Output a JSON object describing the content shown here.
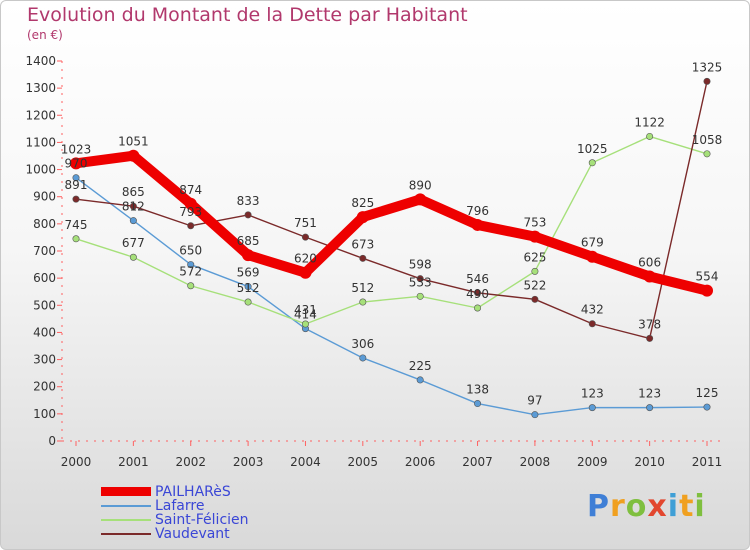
{
  "chart_data": {
    "type": "line",
    "title": "Evolution du Montant de la Dette par Habitant",
    "subtitle": "(en €)",
    "xlabel": "",
    "ylabel": "",
    "categories": [
      "2000",
      "2001",
      "2002",
      "2003",
      "2004",
      "2005",
      "2006",
      "2007",
      "2008",
      "2009",
      "2010",
      "2011"
    ],
    "ylim": [
      0,
      1400
    ],
    "yticks": [
      "0",
      "100",
      "200",
      "300",
      "400",
      "500",
      "600",
      "700",
      "800",
      "900",
      "1000",
      "1100",
      "1200",
      "1300",
      "1400"
    ],
    "grid": false,
    "legend_position": "bottom-left",
    "series": [
      {
        "name": "PAILHARèS",
        "color": "#ee0000",
        "values": [
          1023,
          1051,
          874,
          685,
          620,
          825,
          890,
          796,
          753,
          679,
          606,
          554
        ],
        "labels": [
          "1023",
          "1051",
          "874",
          "685",
          "620",
          "825",
          "890",
          "796",
          "753",
          "679",
          "606",
          "554"
        ]
      },
      {
        "name": "Lafarre",
        "color": "#5b9bd5",
        "values": [
          970,
          812,
          650,
          569,
          414,
          306,
          225,
          138,
          97,
          123,
          123,
          125
        ],
        "labels": [
          "970",
          "812",
          "650",
          "569",
          "414",
          "306",
          "225",
          "138",
          "97",
          "123",
          "123",
          "125"
        ]
      },
      {
        "name": "Saint-Félicien",
        "color": "#a6e07a",
        "values": [
          745,
          677,
          572,
          512,
          431,
          512,
          533,
          490,
          625,
          1025,
          1122,
          1058
        ],
        "labels": [
          "745",
          "677",
          "572",
          "512",
          "431",
          "512",
          "533",
          "490",
          "625",
          "1025",
          "1122",
          "1058"
        ]
      },
      {
        "name": "Vaudevant",
        "color": "#7b2a2a",
        "values": [
          891,
          865,
          793,
          833,
          751,
          673,
          598,
          546,
          522,
          432,
          378,
          1325
        ],
        "labels": [
          "891",
          "865",
          "793",
          "833",
          "751",
          "673",
          "598",
          "546",
          "522",
          "432",
          "378",
          "1325"
        ]
      }
    ]
  },
  "logo": {
    "letters": [
      "P",
      "r",
      "o",
      "x",
      "i",
      "t",
      "i"
    ],
    "colors": [
      "#3f7fd6",
      "#f0a020",
      "#7fbf3f",
      "#e2472f",
      "#3f9fd6",
      "#f0a020",
      "#7fbf3f"
    ]
  }
}
